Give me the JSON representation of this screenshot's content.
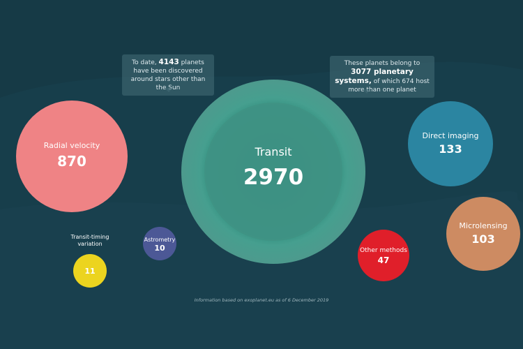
{
  "chart_data": {
    "type": "bubble",
    "title": "",
    "bubbles": [
      {
        "label": "Transit",
        "value": 2970,
        "color": "#3f9284"
      },
      {
        "label": "Radial velocity",
        "value": 870,
        "color": "#ef8385"
      },
      {
        "label": "Direct imaging",
        "value": 133,
        "color": "#2b85a1"
      },
      {
        "label": "Microlensing",
        "value": 103,
        "color": "#cd8b62"
      },
      {
        "label": "Other methods",
        "value": 47,
        "color": "#e01f2a"
      },
      {
        "label": "Astrometry",
        "value": 10,
        "color": "#4c5896"
      },
      {
        "label": "Transit-timing variation",
        "value": 11,
        "color": "#ecd41f"
      }
    ]
  },
  "callouts": {
    "left": {
      "pre": "To date, ",
      "bold": "4143",
      "post": " planets have been discovered around stars other than the Sun"
    },
    "right": {
      "pre": "These planets belong to ",
      "bold": "3077 planetary systems,",
      "post": " of which 674 host more than one planet"
    }
  },
  "footnote": "Information based on exoplanet.eu as of 6 December 2019"
}
